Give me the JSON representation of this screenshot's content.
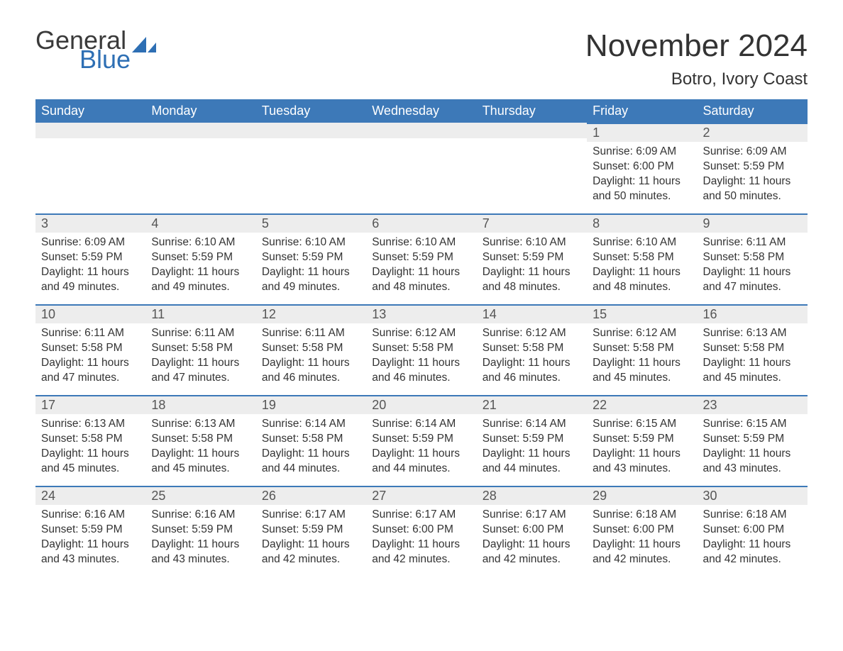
{
  "brand": {
    "general": "General",
    "blue": "Blue"
  },
  "colors": {
    "brand_blue": "#2e6fb4",
    "header_blue": "#3d79b8",
    "row_band": "#ededed",
    "text_dark": "#333333",
    "text_muted": "#555555",
    "background": "#ffffff"
  },
  "typography": {
    "month_title_fontsize": 44,
    "location_fontsize": 24,
    "weekday_fontsize": 18,
    "daynum_fontsize": 18,
    "body_fontsize": 15.5,
    "font_family": "Arial"
  },
  "title": "November 2024",
  "location": "Botro, Ivory Coast",
  "weekdays": [
    "Sunday",
    "Monday",
    "Tuesday",
    "Wednesday",
    "Thursday",
    "Friday",
    "Saturday"
  ],
  "calendar": {
    "type": "table",
    "columns": 7,
    "rows": 5,
    "first_day_column_index": 5,
    "days": [
      {
        "n": 1,
        "sunrise": "6:09 AM",
        "sunset": "6:00 PM",
        "daylight": "11 hours and 50 minutes."
      },
      {
        "n": 2,
        "sunrise": "6:09 AM",
        "sunset": "5:59 PM",
        "daylight": "11 hours and 50 minutes."
      },
      {
        "n": 3,
        "sunrise": "6:09 AM",
        "sunset": "5:59 PM",
        "daylight": "11 hours and 49 minutes."
      },
      {
        "n": 4,
        "sunrise": "6:10 AM",
        "sunset": "5:59 PM",
        "daylight": "11 hours and 49 minutes."
      },
      {
        "n": 5,
        "sunrise": "6:10 AM",
        "sunset": "5:59 PM",
        "daylight": "11 hours and 49 minutes."
      },
      {
        "n": 6,
        "sunrise": "6:10 AM",
        "sunset": "5:59 PM",
        "daylight": "11 hours and 48 minutes."
      },
      {
        "n": 7,
        "sunrise": "6:10 AM",
        "sunset": "5:59 PM",
        "daylight": "11 hours and 48 minutes."
      },
      {
        "n": 8,
        "sunrise": "6:10 AM",
        "sunset": "5:58 PM",
        "daylight": "11 hours and 48 minutes."
      },
      {
        "n": 9,
        "sunrise": "6:11 AM",
        "sunset": "5:58 PM",
        "daylight": "11 hours and 47 minutes."
      },
      {
        "n": 10,
        "sunrise": "6:11 AM",
        "sunset": "5:58 PM",
        "daylight": "11 hours and 47 minutes."
      },
      {
        "n": 11,
        "sunrise": "6:11 AM",
        "sunset": "5:58 PM",
        "daylight": "11 hours and 47 minutes."
      },
      {
        "n": 12,
        "sunrise": "6:11 AM",
        "sunset": "5:58 PM",
        "daylight": "11 hours and 46 minutes."
      },
      {
        "n": 13,
        "sunrise": "6:12 AM",
        "sunset": "5:58 PM",
        "daylight": "11 hours and 46 minutes."
      },
      {
        "n": 14,
        "sunrise": "6:12 AM",
        "sunset": "5:58 PM",
        "daylight": "11 hours and 46 minutes."
      },
      {
        "n": 15,
        "sunrise": "6:12 AM",
        "sunset": "5:58 PM",
        "daylight": "11 hours and 45 minutes."
      },
      {
        "n": 16,
        "sunrise": "6:13 AM",
        "sunset": "5:58 PM",
        "daylight": "11 hours and 45 minutes."
      },
      {
        "n": 17,
        "sunrise": "6:13 AM",
        "sunset": "5:58 PM",
        "daylight": "11 hours and 45 minutes."
      },
      {
        "n": 18,
        "sunrise": "6:13 AM",
        "sunset": "5:58 PM",
        "daylight": "11 hours and 45 minutes."
      },
      {
        "n": 19,
        "sunrise": "6:14 AM",
        "sunset": "5:58 PM",
        "daylight": "11 hours and 44 minutes."
      },
      {
        "n": 20,
        "sunrise": "6:14 AM",
        "sunset": "5:59 PM",
        "daylight": "11 hours and 44 minutes."
      },
      {
        "n": 21,
        "sunrise": "6:14 AM",
        "sunset": "5:59 PM",
        "daylight": "11 hours and 44 minutes."
      },
      {
        "n": 22,
        "sunrise": "6:15 AM",
        "sunset": "5:59 PM",
        "daylight": "11 hours and 43 minutes."
      },
      {
        "n": 23,
        "sunrise": "6:15 AM",
        "sunset": "5:59 PM",
        "daylight": "11 hours and 43 minutes."
      },
      {
        "n": 24,
        "sunrise": "6:16 AM",
        "sunset": "5:59 PM",
        "daylight": "11 hours and 43 minutes."
      },
      {
        "n": 25,
        "sunrise": "6:16 AM",
        "sunset": "5:59 PM",
        "daylight": "11 hours and 43 minutes."
      },
      {
        "n": 26,
        "sunrise": "6:17 AM",
        "sunset": "5:59 PM",
        "daylight": "11 hours and 42 minutes."
      },
      {
        "n": 27,
        "sunrise": "6:17 AM",
        "sunset": "6:00 PM",
        "daylight": "11 hours and 42 minutes."
      },
      {
        "n": 28,
        "sunrise": "6:17 AM",
        "sunset": "6:00 PM",
        "daylight": "11 hours and 42 minutes."
      },
      {
        "n": 29,
        "sunrise": "6:18 AM",
        "sunset": "6:00 PM",
        "daylight": "11 hours and 42 minutes."
      },
      {
        "n": 30,
        "sunrise": "6:18 AM",
        "sunset": "6:00 PM",
        "daylight": "11 hours and 42 minutes."
      }
    ]
  },
  "labels": {
    "sunrise_prefix": "Sunrise: ",
    "sunset_prefix": "Sunset: ",
    "daylight_prefix": "Daylight: "
  }
}
